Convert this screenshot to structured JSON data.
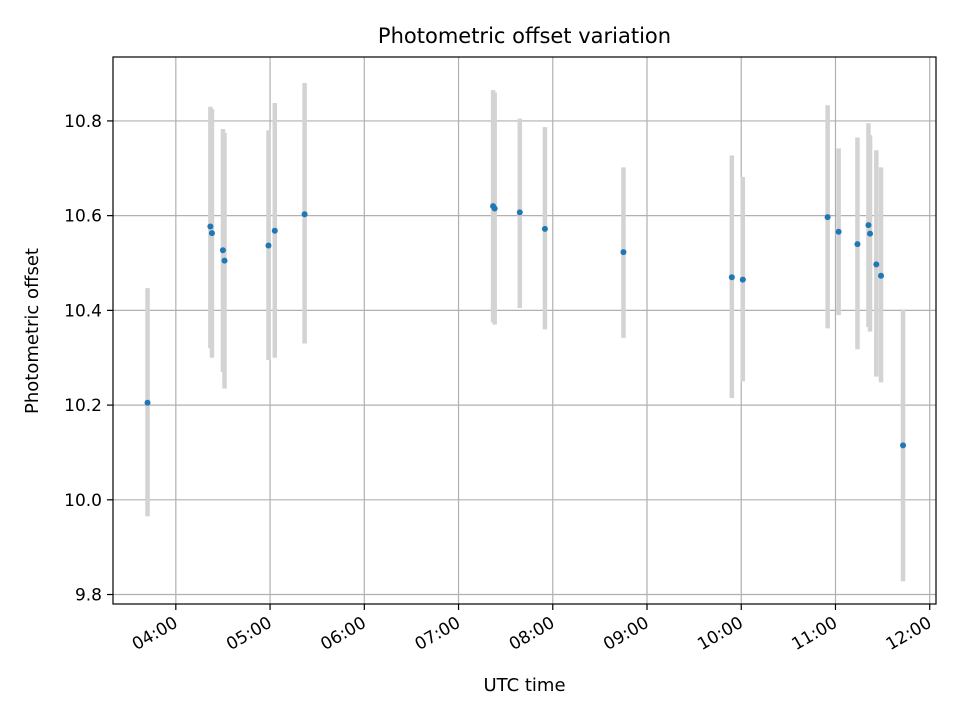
{
  "chart_data": {
    "type": "scatter",
    "title": "Photometric offset variation",
    "xlabel": "UTC time",
    "ylabel": "Photometric offset",
    "x_axis_kind": "time",
    "xlim": [
      "03:20",
      "12:04"
    ],
    "ylim": [
      9.78,
      10.935
    ],
    "x_ticks": [
      "04:00",
      "05:00",
      "06:00",
      "07:00",
      "08:00",
      "09:00",
      "10:00",
      "11:00",
      "12:00"
    ],
    "y_ticks": [
      9.8,
      10.0,
      10.2,
      10.4,
      10.6,
      10.8
    ],
    "y_tick_labels": [
      "9.8",
      "10.0",
      "10.2",
      "10.4",
      "10.6",
      "10.8"
    ],
    "grid": true,
    "x_tick_rotation": "30 degrees",
    "colors": {
      "point": "#1f77b4",
      "errorbar": "#d3d3d3",
      "grid": "#b0b0b0"
    },
    "points": [
      {
        "x": "03:42",
        "y": 10.205,
        "ylow": 9.965,
        "yhigh": 10.447
      },
      {
        "x": "04:22",
        "y": 10.577,
        "ylow": 10.32,
        "yhigh": 10.83
      },
      {
        "x": "04:23",
        "y": 10.563,
        "ylow": 10.3,
        "yhigh": 10.825
      },
      {
        "x": "04:30",
        "y": 10.527,
        "ylow": 10.27,
        "yhigh": 10.783
      },
      {
        "x": "04:31",
        "y": 10.505,
        "ylow": 10.235,
        "yhigh": 10.775
      },
      {
        "x": "04:59",
        "y": 10.537,
        "ylow": 10.295,
        "yhigh": 10.78
      },
      {
        "x": "05:03",
        "y": 10.568,
        "ylow": 10.3,
        "yhigh": 10.838
      },
      {
        "x": "05:22",
        "y": 10.603,
        "ylow": 10.33,
        "yhigh": 10.88
      },
      {
        "x": "07:22",
        "y": 10.62,
        "ylow": 10.375,
        "yhigh": 10.865
      },
      {
        "x": "07:23",
        "y": 10.615,
        "ylow": 10.37,
        "yhigh": 10.86
      },
      {
        "x": "07:39",
        "y": 10.607,
        "ylow": 10.405,
        "yhigh": 10.805
      },
      {
        "x": "07:55",
        "y": 10.572,
        "ylow": 10.36,
        "yhigh": 10.787
      },
      {
        "x": "08:45",
        "y": 10.523,
        "ylow": 10.342,
        "yhigh": 10.702
      },
      {
        "x": "09:54",
        "y": 10.47,
        "ylow": 10.215,
        "yhigh": 10.727
      },
      {
        "x": "10:01",
        "y": 10.465,
        "ylow": 10.25,
        "yhigh": 10.682
      },
      {
        "x": "10:55",
        "y": 10.597,
        "ylow": 10.362,
        "yhigh": 10.833
      },
      {
        "x": "11:02",
        "y": 10.566,
        "ylow": 10.39,
        "yhigh": 10.742
      },
      {
        "x": "11:14",
        "y": 10.54,
        "ylow": 10.318,
        "yhigh": 10.765
      },
      {
        "x": "11:21",
        "y": 10.58,
        "ylow": 10.365,
        "yhigh": 10.795
      },
      {
        "x": "11:22",
        "y": 10.562,
        "ylow": 10.355,
        "yhigh": 10.77
      },
      {
        "x": "11:26",
        "y": 10.497,
        "ylow": 10.26,
        "yhigh": 10.738
      },
      {
        "x": "11:29",
        "y": 10.473,
        "ylow": 10.248,
        "yhigh": 10.702
      },
      {
        "x": "11:43",
        "y": 10.115,
        "ylow": 9.828,
        "yhigh": 10.402
      }
    ]
  }
}
